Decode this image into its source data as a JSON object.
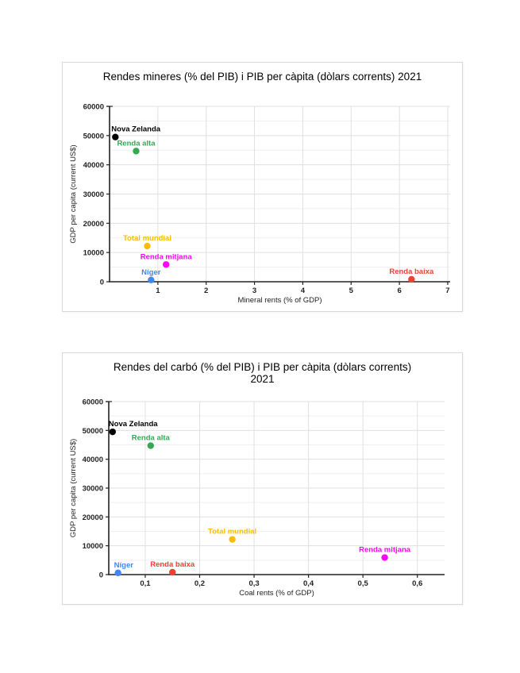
{
  "page": {
    "background": "#ffffff"
  },
  "chart_data": [
    {
      "type": "scatter",
      "title": "Rendes mineres (% del PIB) i PIB per càpita (dòlars corrents) 2021",
      "title_lines": [
        "Rendes mineres (% del PIB) i PIB per càpita (dòlars corrents) 2021"
      ],
      "xlabel": "Mineral rents (% of GDP)",
      "ylabel": "GDP per capita (current US$)",
      "xlim": [
        0,
        7.05
      ],
      "ylim": [
        0,
        60000
      ],
      "grid": true,
      "y_minor_step": 5000,
      "xticks": {
        "values": [
          1,
          2,
          3,
          4,
          5,
          6,
          7
        ],
        "labels": [
          "1",
          "2",
          "3",
          "4",
          "5",
          "6",
          "7"
        ]
      },
      "yticks": {
        "values": [
          0,
          10000,
          20000,
          30000,
          40000,
          50000,
          60000
        ],
        "labels": [
          "0",
          "10000",
          "20000",
          "30000",
          "40000",
          "50000",
          "60000"
        ]
      },
      "points": [
        {
          "name": "Nova Zelanda",
          "x": 0.12,
          "y": 49500,
          "color": "#000000"
        },
        {
          "name": "Renda alta",
          "x": 0.55,
          "y": 44700,
          "color": "#34a853"
        },
        {
          "name": "Total mundial",
          "x": 0.78,
          "y": 12200,
          "color": "#fbbc04"
        },
        {
          "name": "Renda mitjana",
          "x": 1.17,
          "y": 5900,
          "color": "#ff00ff"
        },
        {
          "name": "Níger",
          "x": 0.86,
          "y": 590,
          "color": "#4285f4"
        },
        {
          "name": "Renda baixa",
          "x": 6.25,
          "y": 830,
          "color": "#ea4335"
        }
      ]
    },
    {
      "type": "scatter",
      "title": "Rendes del carbó (% del PIB) i PIB per càpita (dòlars corrents) 2021",
      "title_lines": [
        "Rendes del carbó (% del PIB) i PIB per càpita (dòlars corrents)",
        "2021"
      ],
      "xlabel": "Coal rents (% of GDP)",
      "ylabel": "GDP per capita (current US$)",
      "xlim": [
        0.033,
        0.65
      ],
      "ylim": [
        0,
        60000
      ],
      "grid": true,
      "y_minor_step": 5000,
      "xticks": {
        "values": [
          0.1,
          0.2,
          0.3,
          0.4,
          0.5,
          0.6
        ],
        "labels": [
          "0,1",
          "0,2",
          "0,3",
          "0,4",
          "0,5",
          "0,6"
        ]
      },
      "yticks": {
        "values": [
          0,
          10000,
          20000,
          30000,
          40000,
          50000,
          60000
        ],
        "labels": [
          "0",
          "10000",
          "20000",
          "30000",
          "40000",
          "50000",
          "60000"
        ]
      },
      "points": [
        {
          "name": "Nova Zelanda",
          "x": 0.04,
          "y": 49500,
          "color": "#000000"
        },
        {
          "name": "Renda alta",
          "x": 0.11,
          "y": 44700,
          "color": "#34a853"
        },
        {
          "name": "Total mundial",
          "x": 0.26,
          "y": 12200,
          "color": "#fbbc04"
        },
        {
          "name": "Renda mitjana",
          "x": 0.54,
          "y": 5900,
          "color": "#ff00ff"
        },
        {
          "name": "Níger",
          "x": 0.05,
          "y": 590,
          "color": "#4285f4"
        },
        {
          "name": "Renda baixa",
          "x": 0.15,
          "y": 830,
          "color": "#ea4335"
        }
      ]
    }
  ],
  "colors": {
    "axis": "#222222",
    "grid_major": "#e0e0e0",
    "grid_minor": "#efefef",
    "tick_text": "#222222",
    "card_border": "#d8d8d8"
  }
}
